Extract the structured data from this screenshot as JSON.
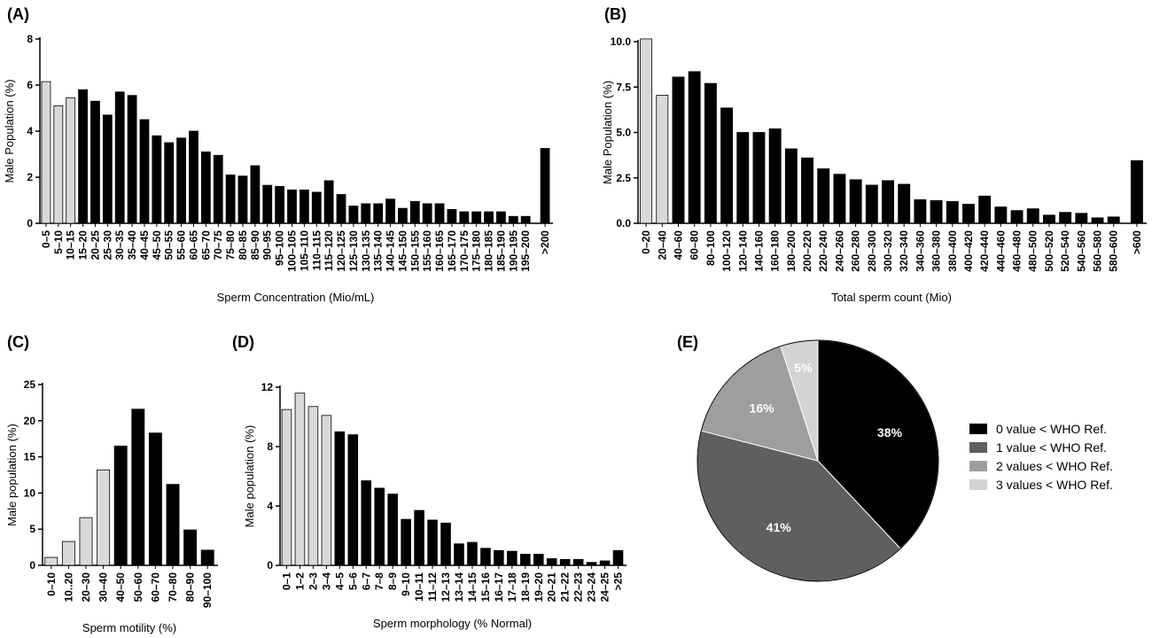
{
  "chart_data": [
    {
      "panel": "(A)",
      "type": "bar",
      "xlabel": "Sperm Concentration (Mio/mL)",
      "ylabel": "Male Population (%)",
      "ylim": [
        0,
        8
      ],
      "yticks": [
        "0",
        "2",
        "4",
        "6",
        "8"
      ],
      "categories": [
        "0–5",
        "5–10",
        "10–15",
        "15–20",
        "20–25",
        "25–30",
        "30–35",
        "35–40",
        "40–45",
        "45–50",
        "50–55",
        "55–60",
        "60–65",
        "65–70",
        "70–75",
        "75–80",
        "80–85",
        "85–90",
        "90–95",
        "95–100",
        "100–105",
        "105–110",
        "110–115",
        "115–120",
        "120–125",
        "125–130",
        "130–135",
        "135–140",
        "140–145",
        "145–150",
        "150–155",
        "155–160",
        "160–165",
        "165–170",
        "170–175",
        "175–180",
        "180–185",
        "185–190",
        "190–195",
        "195–200",
        ">200"
      ],
      "values": [
        6.15,
        5.1,
        5.45,
        5.8,
        5.3,
        4.7,
        5.7,
        5.55,
        4.5,
        3.8,
        3.5,
        3.7,
        4.0,
        3.1,
        2.95,
        2.1,
        2.05,
        2.5,
        1.65,
        1.6,
        1.45,
        1.45,
        1.35,
        1.85,
        1.25,
        0.75,
        0.85,
        0.85,
        1.05,
        0.65,
        0.95,
        0.85,
        0.85,
        0.6,
        0.5,
        0.5,
        0.5,
        0.5,
        0.3,
        0.3,
        3.25
      ],
      "highlight": [
        true,
        true,
        true,
        false,
        false,
        false,
        false,
        false,
        false,
        false,
        false,
        false,
        false,
        false,
        false,
        false,
        false,
        false,
        false,
        false,
        false,
        false,
        false,
        false,
        false,
        false,
        false,
        false,
        false,
        false,
        false,
        false,
        false,
        false,
        false,
        false,
        false,
        false,
        false,
        false,
        false
      ]
    },
    {
      "panel": "(B)",
      "type": "bar",
      "xlabel": "Total sperm count (Mio)",
      "ylabel": "Male Population (%)",
      "ylim": [
        0,
        10
      ],
      "yticks": [
        "0.0",
        "2.5",
        "5.0",
        "7.5",
        "10.0"
      ],
      "categories": [
        "0–20",
        "20–40",
        "40–60",
        "60–80",
        "80–100",
        "100–120",
        "120–140",
        "140–160",
        "160–180",
        "180–200",
        "200–220",
        "220–240",
        "240–260",
        "260–280",
        "280–300",
        "300–320",
        "320–340",
        "340–360",
        "360–380",
        "380–400",
        "400–420",
        "420–440",
        "440–460",
        "460–480",
        "480–500",
        "500–520",
        "520–540",
        "540–560",
        "560–580",
        "580–600",
        ">600"
      ],
      "values": [
        10.15,
        7.05,
        8.05,
        8.35,
        7.7,
        6.35,
        5.0,
        5.0,
        5.2,
        4.1,
        3.6,
        3.0,
        2.7,
        2.4,
        2.1,
        2.35,
        2.15,
        1.3,
        1.25,
        1.2,
        1.05,
        1.5,
        0.9,
        0.7,
        0.8,
        0.45,
        0.6,
        0.55,
        0.3,
        0.35,
        3.45
      ],
      "highlight": [
        true,
        true,
        false,
        false,
        false,
        false,
        false,
        false,
        false,
        false,
        false,
        false,
        false,
        false,
        false,
        false,
        false,
        false,
        false,
        false,
        false,
        false,
        false,
        false,
        false,
        false,
        false,
        false,
        false,
        false,
        false
      ]
    },
    {
      "panel": "(C)",
      "type": "bar",
      "xlabel": "Sperm motility (%)",
      "ylabel": "Male population (%)",
      "ylim": [
        0,
        25
      ],
      "yticks": [
        "0",
        "5",
        "10",
        "15",
        "20",
        "25"
      ],
      "categories": [
        "0–10",
        "10..20",
        "20–30",
        "30–40",
        "40–50",
        "50–60",
        "60–70",
        "70–80",
        "80–90",
        "90–100"
      ],
      "values": [
        1.1,
        3.3,
        6.6,
        13.2,
        16.5,
        21.6,
        18.3,
        11.2,
        4.9,
        2.1
      ],
      "highlight": [
        true,
        true,
        true,
        true,
        false,
        false,
        false,
        false,
        false,
        false
      ]
    },
    {
      "panel": "(D)",
      "type": "bar",
      "xlabel": "Sperm morphology (% Normal)",
      "ylabel": "Male population (%)",
      "ylim": [
        0,
        12
      ],
      "yticks": [
        "0",
        "4",
        "8",
        "12"
      ],
      "categories": [
        "0–1",
        "1–2",
        "2–3",
        "3–4",
        "4–5",
        "5–6",
        "6–7",
        "7–8",
        "8–9",
        "9–10",
        "10–11",
        "11–12",
        "12–13",
        "13–14",
        "14–15",
        "15–16",
        "16–17",
        "17–18",
        "18–19",
        "19–20",
        "20–21",
        "21–22",
        "22–23",
        "23–24",
        "24–25",
        ">25"
      ],
      "values": [
        10.5,
        11.6,
        10.7,
        10.1,
        9.0,
        8.8,
        5.7,
        5.2,
        4.8,
        3.1,
        3.7,
        3.05,
        2.85,
        1.45,
        1.55,
        1.15,
        1.0,
        0.95,
        0.75,
        0.75,
        0.45,
        0.4,
        0.4,
        0.2,
        0.3,
        1.0
      ],
      "highlight": [
        true,
        true,
        true,
        true,
        false,
        false,
        false,
        false,
        false,
        false,
        false,
        false,
        false,
        false,
        false,
        false,
        false,
        false,
        false,
        false,
        false,
        false,
        false,
        false,
        false,
        false
      ]
    },
    {
      "panel": "(E)",
      "type": "pie",
      "slices": [
        {
          "label": "0 value < WHO Ref.",
          "value": 38,
          "display": "38%",
          "color": "#000000"
        },
        {
          "label": "1 value < WHO Ref.",
          "value": 41,
          "display": "41%",
          "color": "#5f5f5f"
        },
        {
          "label": "2 values < WHO Ref.",
          "value": 16,
          "display": "16%",
          "color": "#9e9e9e"
        },
        {
          "label": "3 values < WHO Ref.",
          "value": 5,
          "display": "5%",
          "color": "#d3d3d3"
        }
      ]
    }
  ],
  "colors": {
    "highlight": "#d9d9d9",
    "normal": "#000000",
    "stroke": "#000000"
  }
}
